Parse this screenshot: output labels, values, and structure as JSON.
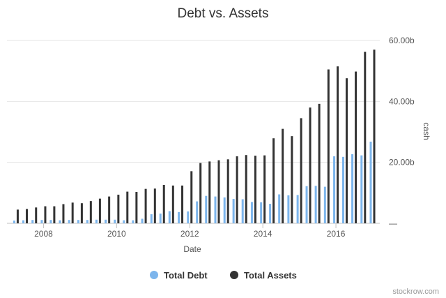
{
  "chart_data": {
    "type": "bar",
    "title": "Debt vs. Assets",
    "xlabel": "Date",
    "ylabel": "cash",
    "ylim": [
      0,
      60
    ],
    "y_unit_suffix": "b",
    "y_ticks": [
      {
        "value": 0,
        "label": "—"
      },
      {
        "value": 20,
        "label": "20.00b"
      },
      {
        "value": 40,
        "label": "40.00b"
      },
      {
        "value": 60,
        "label": "60.00b"
      }
    ],
    "xlim": [
      2007.0,
      2017.2
    ],
    "x_ticks": [
      {
        "value": 2008,
        "label": "2008"
      },
      {
        "value": 2010,
        "label": "2010"
      },
      {
        "value": 2012,
        "label": "2012"
      },
      {
        "value": 2014,
        "label": "2014"
      },
      {
        "value": 2016,
        "label": "2016"
      }
    ],
    "grid": true,
    "legend_position": "bottom-center",
    "x": [
      "2007-03-31",
      "2007-06-30",
      "2007-09-30",
      "2007-12-31",
      "2008-03-31",
      "2008-06-30",
      "2008-09-30",
      "2008-12-31",
      "2009-03-31",
      "2009-06-30",
      "2009-09-30",
      "2009-12-31",
      "2010-03-31",
      "2010-06-30",
      "2010-09-30",
      "2010-12-31",
      "2011-03-31",
      "2011-06-30",
      "2011-09-30",
      "2011-12-31",
      "2012-03-31",
      "2012-06-30",
      "2012-09-30",
      "2012-12-31",
      "2013-03-31",
      "2013-06-30",
      "2013-09-30",
      "2013-12-31",
      "2014-03-31",
      "2014-06-30",
      "2014-09-30",
      "2014-12-31",
      "2015-03-31",
      "2015-06-30",
      "2015-09-30",
      "2015-12-31",
      "2016-03-31",
      "2016-06-30",
      "2016-09-30",
      "2016-12-31"
    ],
    "series": [
      {
        "name": "Total Debt",
        "color": "#7cb5ec",
        "values": [
          0.9,
          1.0,
          1.1,
          1.1,
          1.1,
          1.0,
          1.1,
          1.1,
          1.1,
          1.2,
          1.2,
          1.2,
          1.0,
          1.0,
          1.5,
          3.0,
          3.2,
          4.0,
          3.7,
          3.9,
          7.2,
          9.0,
          8.8,
          8.5,
          8.0,
          7.9,
          7.0,
          6.9,
          6.4,
          9.5,
          9.2,
          9.3,
          12.2,
          12.3,
          12.0,
          22.0,
          21.8,
          22.7,
          22.3,
          26.8
        ]
      },
      {
        "name": "Total Assets",
        "color": "#333333",
        "values": [
          4.5,
          4.7,
          5.2,
          5.6,
          5.6,
          6.3,
          6.8,
          6.6,
          7.3,
          8.1,
          8.8,
          9.4,
          10.4,
          10.3,
          11.3,
          11.4,
          12.6,
          12.4,
          12.4,
          17.1,
          19.8,
          20.3,
          20.7,
          21.0,
          22.0,
          22.4,
          22.2,
          22.3,
          27.9,
          31.0,
          28.6,
          34.5,
          38.0,
          39.2,
          50.5,
          51.5,
          47.6,
          49.8,
          56.3,
          57.0
        ]
      }
    ]
  },
  "credit": "stockrow.com"
}
